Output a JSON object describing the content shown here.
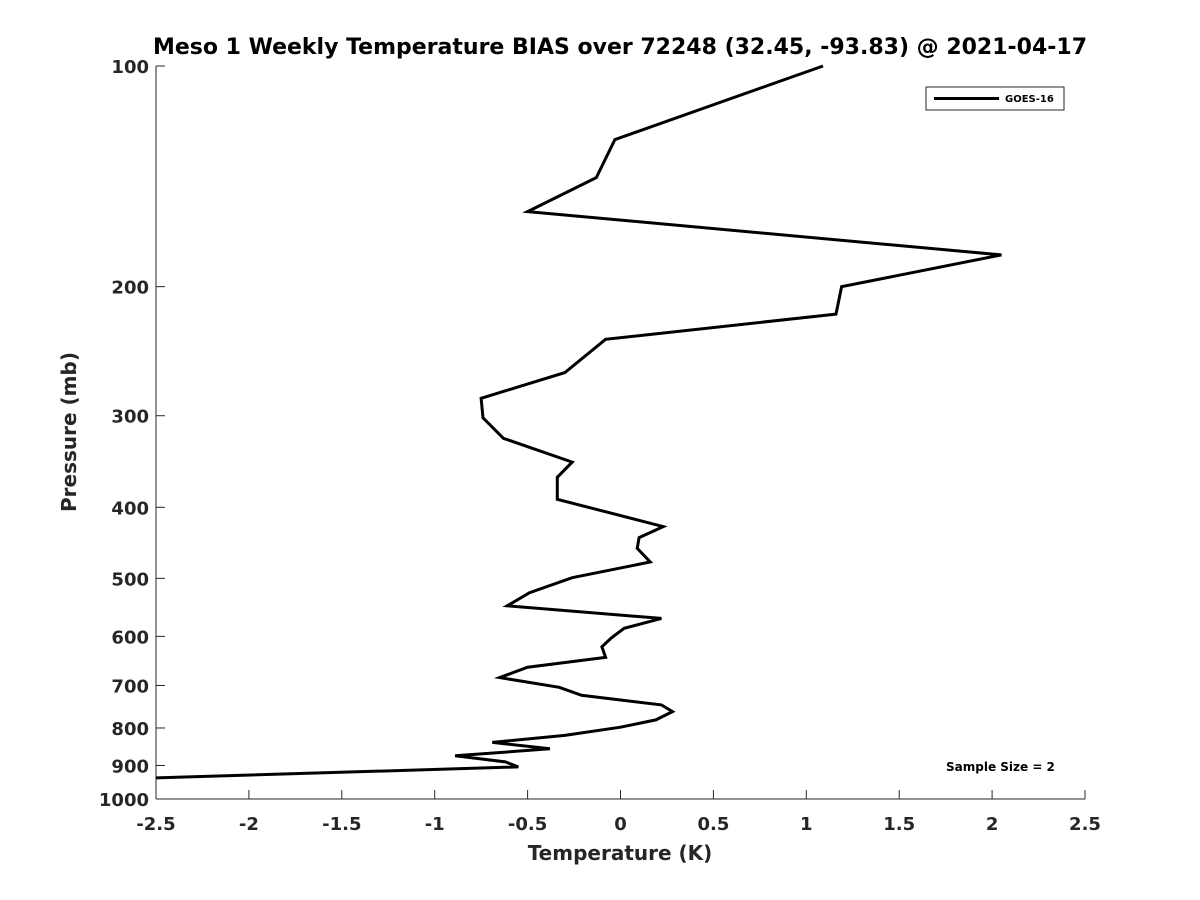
{
  "chart_data": {
    "type": "line",
    "title": "Meso 1 Weekly Temperature BIAS over 72248 (32.45, -93.83) @ 2021-04-17",
    "xlabel": "Temperature (K)",
    "ylabel": "Pressure (mb)",
    "xlim": [
      -2.5,
      2.5
    ],
    "ylim": [
      100,
      1000
    ],
    "y_scale": "log",
    "y_reversed": true,
    "grid": false,
    "legend_placement": "top-right",
    "x_ticks": [
      -2.5,
      -2,
      -1.5,
      -1,
      -0.5,
      0,
      0.5,
      1,
      1.5,
      2,
      2.5
    ],
    "x_tick_labels": [
      "-2.5",
      "-2",
      "-1.5",
      "-1",
      "-0.5",
      "0",
      "0.5",
      "1",
      "1.5",
      "2",
      "2.5"
    ],
    "y_ticks": [
      100,
      200,
      300,
      400,
      500,
      600,
      700,
      800,
      900,
      1000
    ],
    "y_tick_labels": [
      "100",
      "200",
      "300",
      "400",
      "500",
      "600",
      "700",
      "800",
      "900",
      "1000"
    ],
    "annotation": "Sample Size = 2",
    "series": [
      {
        "name": "GOES-16",
        "color": "#000000",
        "points": [
          {
            "x": 1.09,
            "y": 100
          },
          {
            "x": -0.03,
            "y": 126
          },
          {
            "x": -0.13,
            "y": 142
          },
          {
            "x": -0.5,
            "y": 158
          },
          {
            "x": 2.05,
            "y": 181
          },
          {
            "x": 1.19,
            "y": 200
          },
          {
            "x": 1.16,
            "y": 218
          },
          {
            "x": -0.08,
            "y": 236
          },
          {
            "x": -0.3,
            "y": 262
          },
          {
            "x": -0.75,
            "y": 284
          },
          {
            "x": -0.74,
            "y": 302
          },
          {
            "x": -0.63,
            "y": 322
          },
          {
            "x": -0.26,
            "y": 347
          },
          {
            "x": -0.34,
            "y": 364
          },
          {
            "x": -0.34,
            "y": 390
          },
          {
            "x": 0.23,
            "y": 425
          },
          {
            "x": 0.1,
            "y": 440
          },
          {
            "x": 0.09,
            "y": 455
          },
          {
            "x": 0.16,
            "y": 475
          },
          {
            "x": -0.26,
            "y": 499
          },
          {
            "x": -0.49,
            "y": 523
          },
          {
            "x": -0.61,
            "y": 545
          },
          {
            "x": 0.22,
            "y": 567
          },
          {
            "x": 0.02,
            "y": 585
          },
          {
            "x": -0.05,
            "y": 603
          },
          {
            "x": -0.1,
            "y": 620
          },
          {
            "x": -0.08,
            "y": 641
          },
          {
            "x": -0.5,
            "y": 661
          },
          {
            "x": -0.65,
            "y": 683
          },
          {
            "x": -0.33,
            "y": 704
          },
          {
            "x": -0.21,
            "y": 722
          },
          {
            "x": 0.22,
            "y": 744
          },
          {
            "x": 0.28,
            "y": 760
          },
          {
            "x": 0.19,
            "y": 780
          },
          {
            "x": 0.0,
            "y": 798
          },
          {
            "x": -0.3,
            "y": 819
          },
          {
            "x": -0.69,
            "y": 837
          },
          {
            "x": -0.38,
            "y": 854
          },
          {
            "x": -0.89,
            "y": 873
          },
          {
            "x": -0.62,
            "y": 890
          },
          {
            "x": -0.55,
            "y": 904
          },
          {
            "x": -2.5,
            "y": 936
          }
        ]
      }
    ]
  }
}
